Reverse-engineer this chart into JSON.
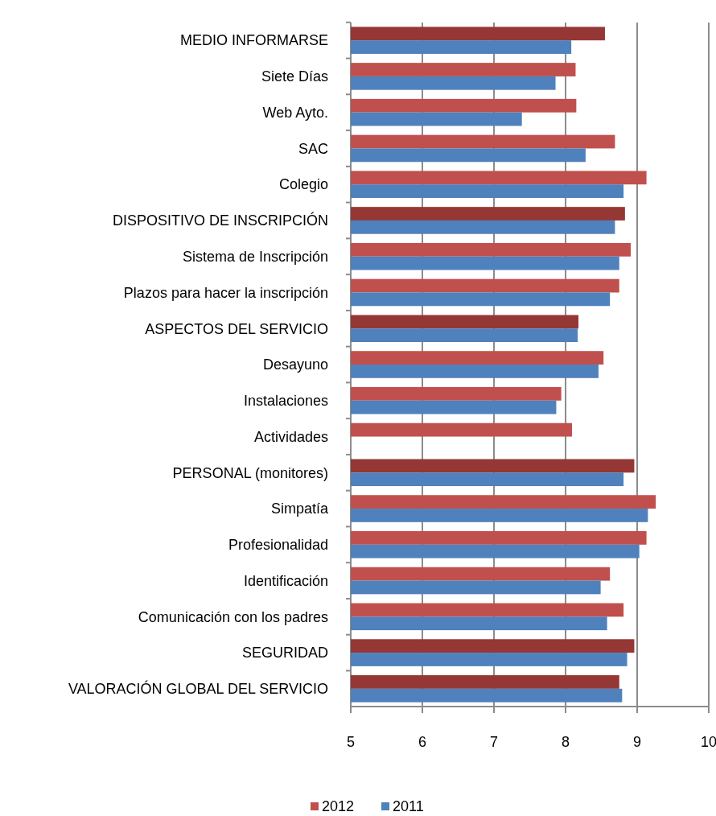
{
  "chart_data": {
    "type": "bar",
    "orientation": "horizontal",
    "categories": [
      "MEDIO INFORMARSE",
      "Siete Días",
      "Web Ayto.",
      "SAC",
      "Colegio",
      "DISPOSITIVO DE INSCRIPCIÓN",
      "Sistema de Inscripción",
      "Plazos para hacer la inscripción",
      "ASPECTOS DEL SERVICIO",
      "Desayuno",
      "Instalaciones",
      "Actividades",
      "PERSONAL (monitores)",
      "Simpatía",
      "Profesionalidad",
      "Identificación",
      "Comunicación con los padres",
      "SEGURIDAD",
      "VALORACIÓN GLOBAL DEL SERVICIO"
    ],
    "series": [
      {
        "name": "2012",
        "color": "#c0504d",
        "colors": [
          "#953735",
          "#c0504d",
          "#c0504d",
          "#c0504d",
          "#c0504d",
          "#953735",
          "#c0504d",
          "#c0504d",
          "#953735",
          "#c0504d",
          "#c0504d",
          "#c0504d",
          "#953735",
          "#c0504d",
          "#c0504d",
          "#c0504d",
          "#c0504d",
          "#953735",
          "#953735"
        ],
        "values": [
          8.55,
          8.14,
          8.15,
          8.69,
          9.13,
          8.83,
          8.91,
          8.75,
          8.18,
          8.53,
          7.94,
          8.09,
          8.96,
          9.26,
          9.13,
          8.62,
          8.81,
          8.96,
          8.75
        ]
      },
      {
        "name": "2011",
        "color": "#4f81bd",
        "values": [
          8.08,
          7.86,
          7.39,
          8.28,
          8.81,
          8.69,
          8.75,
          8.62,
          8.17,
          8.46,
          7.87,
          null,
          8.81,
          9.15,
          9.03,
          8.49,
          8.58,
          8.86,
          8.79
        ]
      }
    ],
    "xlim": [
      5,
      10
    ],
    "xticks": [
      5,
      6,
      7,
      8,
      9,
      10
    ],
    "grid": "x",
    "legend": "bottom"
  }
}
